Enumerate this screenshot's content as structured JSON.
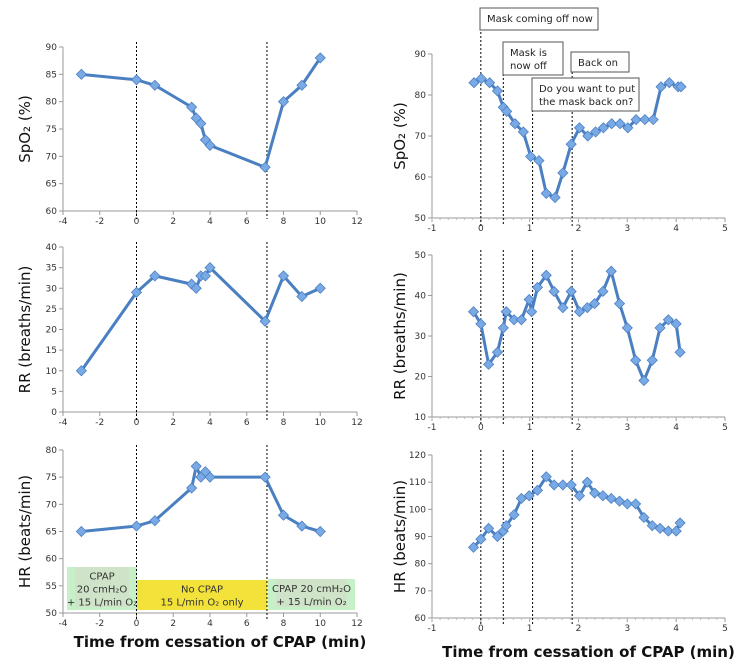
{
  "chart_data": [
    {
      "type": "line",
      "panel": "left-spo2",
      "ylabel": "SpO₂ (%)",
      "xlim": [
        -4,
        12
      ],
      "ylim": [
        60,
        90
      ],
      "xticks": [
        -4,
        -2,
        0,
        2,
        4,
        6,
        8,
        10,
        12
      ],
      "yticks": [
        60,
        65,
        70,
        75,
        80,
        85,
        90
      ],
      "x": [
        -3,
        0,
        1,
        3,
        3.25,
        3.5,
        3.75,
        4,
        7,
        8,
        9,
        10
      ],
      "y": [
        85,
        84,
        83,
        79,
        77,
        76,
        73,
        72,
        68,
        80,
        83,
        88
      ],
      "vlines": [
        0,
        7.1
      ]
    },
    {
      "type": "line",
      "panel": "left-rr",
      "ylabel": "RR (breaths/min)",
      "xlim": [
        -4,
        12
      ],
      "ylim": [
        0,
        40
      ],
      "xticks": [
        -4,
        -2,
        0,
        2,
        4,
        6,
        8,
        10,
        12
      ],
      "yticks": [
        0,
        5,
        10,
        15,
        20,
        25,
        30,
        35,
        40
      ],
      "x": [
        -3,
        0,
        1,
        3,
        3.25,
        3.5,
        3.75,
        4,
        7,
        8,
        9,
        10
      ],
      "y": [
        10,
        29,
        33,
        31,
        30,
        33,
        33,
        35,
        22,
        33,
        28,
        30
      ],
      "vlines": [
        0,
        7.1
      ]
    },
    {
      "type": "line",
      "panel": "left-hr",
      "ylabel": "HR (beats/min)",
      "xlabel": "Time from cessation of CPAP (min)",
      "xlim": [
        -4,
        12
      ],
      "ylim": [
        50,
        80
      ],
      "xticks": [
        -4,
        -2,
        0,
        2,
        4,
        6,
        8,
        10,
        12
      ],
      "yticks": [
        50,
        55,
        60,
        65,
        70,
        75,
        80
      ],
      "x": [
        -3,
        0,
        1,
        3,
        3.25,
        3.5,
        3.75,
        4,
        7,
        8,
        9,
        10
      ],
      "y": [
        65,
        66,
        67,
        73,
        77,
        75,
        76,
        75,
        75,
        68,
        66,
        65
      ],
      "vlines": [
        0,
        7.1
      ],
      "bands": [
        {
          "lines": [
            "CPAP",
            "20 cmH₂O",
            "+ 15 L/min O₂"
          ],
          "color": "#c8f0c8"
        },
        {
          "lines": [
            "No CPAP",
            "15 L/min O₂ only"
          ],
          "color": "#f2e23a"
        },
        {
          "lines": [
            "CPAP 20 cmH₂O",
            "+ 15 L/min O₂"
          ],
          "color": "#c8f0c8"
        }
      ]
    },
    {
      "type": "line",
      "panel": "right-spo2",
      "ylabel": "SpO₂ (%)",
      "xlim": [
        -1,
        5
      ],
      "ylim": [
        50,
        90
      ],
      "xticks": [
        -1,
        0,
        1,
        2,
        3,
        4,
        5
      ],
      "yticks": [
        50,
        60,
        70,
        80,
        90
      ],
      "x": [
        -0.14,
        0.01,
        0.18,
        0.34,
        0.46,
        0.53,
        0.7,
        0.87,
        1.02,
        1.19,
        1.34,
        1.52,
        1.68,
        1.85,
        2.02,
        2.19,
        2.35,
        2.51,
        2.68,
        2.85,
        3.01,
        3.18,
        3.36,
        3.53,
        3.69,
        3.86,
        4.04,
        4.1
      ],
      "y": [
        83,
        84,
        83,
        81,
        77,
        76,
        73,
        71,
        65,
        64,
        56,
        55,
        61,
        68,
        72,
        70,
        71,
        72,
        73,
        73,
        72,
        74,
        74,
        74,
        82,
        83,
        82,
        82
      ],
      "vlines": [
        0,
        0.46,
        1.06,
        1.87
      ],
      "annotations": [
        "Mask coming off now",
        "Mask is now off",
        "Back on",
        "Do you want to put the mask back on?"
      ]
    },
    {
      "type": "line",
      "panel": "right-rr",
      "ylabel": "RR (breaths/min)",
      "xlim": [
        -1,
        5
      ],
      "ylim": [
        10,
        50
      ],
      "xticks": [
        -1,
        0,
        1,
        2,
        3,
        4,
        5
      ],
      "yticks": [
        10,
        20,
        30,
        40,
        50
      ],
      "x": [
        -0.15,
        0,
        0.16,
        0.34,
        0.46,
        0.52,
        0.68,
        0.83,
        0.99,
        1.04,
        1.16,
        1.34,
        1.5,
        1.68,
        1.85,
        2.02,
        2.18,
        2.33,
        2.5,
        2.67,
        2.84,
        3.0,
        3.17,
        3.34,
        3.51,
        3.67,
        3.84,
        4.0,
        4.08
      ],
      "y": [
        36,
        33,
        23,
        26,
        32,
        36,
        34,
        34,
        39,
        36,
        42,
        45,
        41,
        37,
        41,
        36,
        37,
        38,
        41,
        46,
        38,
        32,
        24,
        19,
        24,
        32,
        34,
        33,
        26
      ],
      "vlines": [
        0,
        0.46,
        1.06,
        1.87
      ]
    },
    {
      "type": "line",
      "panel": "right-hr",
      "ylabel": "HR (beats/min)",
      "xlabel": "Time from cessation of CPAP (min)",
      "xlim": [
        -1,
        5
      ],
      "ylim": [
        60,
        120
      ],
      "xticks": [
        -1,
        0,
        1,
        2,
        3,
        4,
        5
      ],
      "yticks": [
        60,
        70,
        80,
        90,
        100,
        110,
        120
      ],
      "x": [
        -0.15,
        0,
        0.16,
        0.34,
        0.46,
        0.52,
        0.68,
        0.83,
        0.99,
        1.16,
        1.34,
        1.5,
        1.68,
        1.85,
        2.02,
        2.18,
        2.33,
        2.5,
        2.67,
        2.84,
        3.0,
        3.17,
        3.34,
        3.51,
        3.67,
        3.84,
        4.0,
        4.08
      ],
      "y": [
        86,
        89,
        93,
        90,
        92,
        94,
        98,
        104,
        105,
        107,
        112,
        109,
        109,
        109,
        105,
        110,
        106,
        105,
        104,
        103,
        102,
        102,
        97,
        94,
        93,
        92,
        92,
        95
      ],
      "vlines": [
        0,
        0.46,
        1.06,
        1.87
      ]
    }
  ],
  "colors": {
    "line": "#4a7fc1",
    "marker": "#7aaae6",
    "vline": "#000000"
  }
}
